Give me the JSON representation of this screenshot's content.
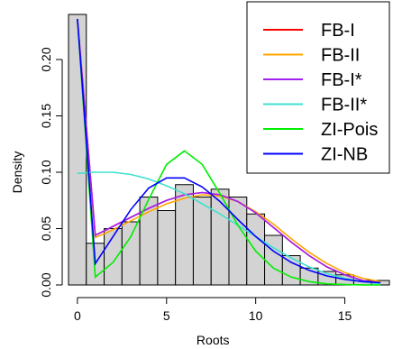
{
  "chart_data": {
    "type": "bar",
    "title": "",
    "xlabel": "Roots",
    "ylabel": "Density",
    "xlim": [
      -0.5,
      17.5
    ],
    "ylim": [
      0,
      0.24
    ],
    "x_ticks": [
      0,
      5,
      10,
      15
    ],
    "x_tick_labels": [
      "0",
      "5",
      "10",
      "15"
    ],
    "y_ticks": [
      0.0,
      0.05,
      0.1,
      0.15,
      0.2
    ],
    "y_tick_labels": [
      "0.00",
      "0.05",
      "0.10",
      "0.15",
      "0.20"
    ],
    "histogram": {
      "bin_width": 1,
      "bin_centers": [
        0,
        1,
        2,
        3,
        4,
        5,
        6,
        7,
        8,
        9,
        10,
        11,
        12,
        13,
        14,
        15,
        16,
        17
      ],
      "density": [
        0.24,
        0.037,
        0.05,
        0.056,
        0.078,
        0.066,
        0.089,
        0.078,
        0.085,
        0.078,
        0.063,
        0.044,
        0.026,
        0.015,
        0.012,
        0.009,
        0.004,
        0.004
      ],
      "fill": "#d3d3d3",
      "stroke": "#000000"
    },
    "series": [
      {
        "name": "FB-I",
        "color": "#ff0000",
        "x": [
          0,
          1,
          2,
          3,
          4,
          5,
          6,
          7,
          8,
          9,
          10,
          11,
          12,
          13,
          14,
          15,
          16,
          17
        ],
        "values": [
          0.236,
          0.044,
          0.052,
          0.06,
          0.068,
          0.075,
          0.08,
          0.082,
          0.08,
          0.074,
          0.064,
          0.051,
          0.038,
          0.026,
          0.016,
          0.009,
          0.004,
          0.002
        ]
      },
      {
        "name": "FB-II",
        "color": "#ffa500",
        "x": [
          0,
          1,
          2,
          3,
          4,
          5,
          6,
          7,
          8,
          9,
          10,
          11,
          12,
          13,
          14,
          15,
          16,
          17
        ],
        "values": [
          0.236,
          0.042,
          0.049,
          0.057,
          0.065,
          0.072,
          0.077,
          0.08,
          0.079,
          0.074,
          0.065,
          0.054,
          0.041,
          0.029,
          0.019,
          0.011,
          0.006,
          0.003
        ]
      },
      {
        "name": "FB-I*",
        "color": "#a020f0",
        "x": [
          0,
          1,
          2,
          3,
          4,
          5,
          6,
          7,
          8,
          9,
          10,
          11,
          12,
          13,
          14,
          15,
          16,
          17
        ],
        "values": [
          0.236,
          0.044,
          0.052,
          0.06,
          0.068,
          0.075,
          0.08,
          0.082,
          0.08,
          0.074,
          0.064,
          0.051,
          0.038,
          0.026,
          0.016,
          0.009,
          0.004,
          0.002
        ]
      },
      {
        "name": "FB-II*",
        "color": "#40e0d0",
        "x": [
          0,
          1,
          2,
          3,
          4,
          5,
          6,
          7,
          8,
          9,
          10,
          11,
          12,
          13,
          14,
          15,
          16,
          17
        ],
        "values": [
          0.099,
          0.1,
          0.1,
          0.098,
          0.094,
          0.088,
          0.081,
          0.072,
          0.063,
          0.053,
          0.043,
          0.033,
          0.024,
          0.016,
          0.01,
          0.006,
          0.003,
          0.001
        ]
      },
      {
        "name": "ZI-Pois",
        "color": "#00ee00",
        "x": [
          0,
          1,
          2,
          3,
          4,
          5,
          6,
          7,
          8,
          9,
          10,
          11,
          12,
          13,
          14,
          15,
          16,
          17
        ],
        "values": [
          0.236,
          0.007,
          0.02,
          0.043,
          0.076,
          0.107,
          0.119,
          0.107,
          0.081,
          0.053,
          0.03,
          0.015,
          0.007,
          0.003,
          0.001,
          0.0004,
          0.0001,
          0.0
        ]
      },
      {
        "name": "ZI-NB",
        "color": "#0000ff",
        "x": [
          0,
          1,
          2,
          3,
          4,
          5,
          6,
          7,
          8,
          9,
          10,
          11,
          12,
          13,
          14,
          15,
          16,
          17
        ],
        "values": [
          0.236,
          0.019,
          0.043,
          0.067,
          0.086,
          0.095,
          0.095,
          0.087,
          0.074,
          0.058,
          0.043,
          0.03,
          0.02,
          0.013,
          0.008,
          0.005,
          0.003,
          0.002
        ]
      }
    ],
    "legend_position": "top-right",
    "grid": false
  }
}
